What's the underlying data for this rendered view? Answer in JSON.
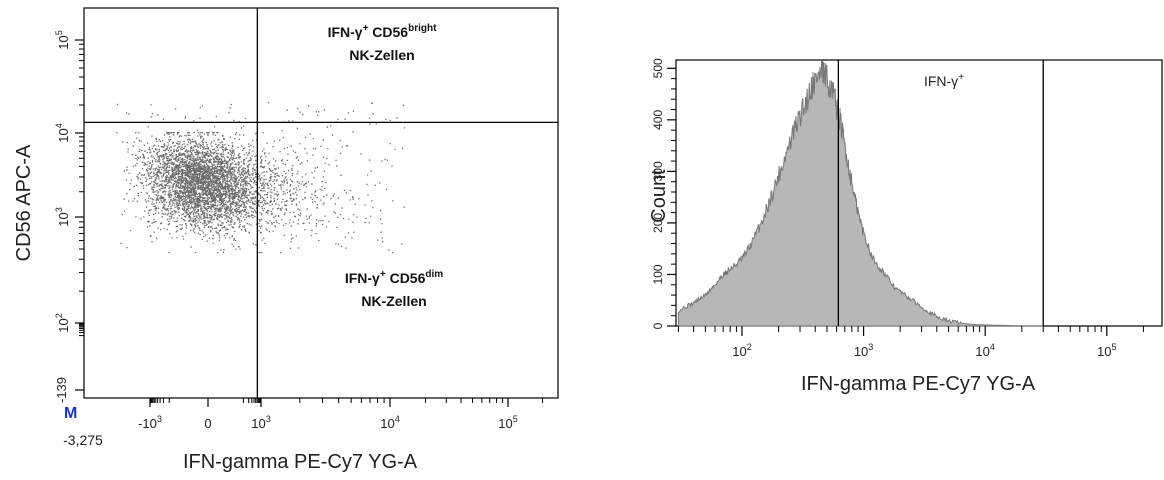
{
  "chart_data": [
    {
      "type": "scatter",
      "xlabel": "IFN-gamma PE-Cy7 YG-A",
      "ylabel": "CD56 APC-A",
      "x_ticks": [
        {
          "label": "-10",
          "sup": "3",
          "value": -1000
        },
        {
          "label": "0",
          "sup": "",
          "value": 0
        },
        {
          "label": "10",
          "sup": "3",
          "value": 1000
        },
        {
          "label": "10",
          "sup": "4",
          "value": 10000
        },
        {
          "label": "10",
          "sup": "5",
          "value": 100000
        }
      ],
      "y_ticks": [
        {
          "label": "-139",
          "sup": "",
          "value": -139
        },
        {
          "label": "10",
          "sup": "2",
          "value": 100
        },
        {
          "label": "10",
          "sup": "3",
          "value": 1000
        },
        {
          "label": "10",
          "sup": "4",
          "value": 10000
        },
        {
          "label": "10",
          "sup": "5",
          "value": 100000
        }
      ],
      "x_min_label": "-3,275",
      "marker_label": "M",
      "gate_x": 620,
      "gate_y": 13000,
      "quadrant_labels": [
        {
          "id": "upper-right",
          "line1": "IFN-γ",
          "sup1": "+",
          "line1b": " CD56",
          "sup2": "bright",
          "line2": "NK-Zellen"
        },
        {
          "id": "lower-right",
          "line1": "IFN-γ",
          "sup1": "+",
          "line1b": " CD56",
          "sup2": "dim",
          "line2": "NK-Zellen"
        }
      ],
      "point_cloud": {
        "center_x": 60,
        "center_y": 3000,
        "spread_note": "dense cluster around x≈0–300, y≈1000–6000"
      },
      "color": "#6b6b6b"
    },
    {
      "type": "area",
      "xlabel": "IFN-gamma PE-Cy7 YG-A",
      "ylabel": "Count",
      "x_ticks": [
        {
          "label": "10",
          "sup": "2",
          "value": 100
        },
        {
          "label": "10",
          "sup": "3",
          "value": 1000
        },
        {
          "label": "10",
          "sup": "4",
          "value": 10000
        },
        {
          "label": "10",
          "sup": "5",
          "value": 100000
        }
      ],
      "y_ticks": [
        0,
        100,
        200,
        300,
        400,
        500
      ],
      "ylim": [
        0,
        520
      ],
      "gate_label": "IFN-γ",
      "gate_label_sup": "+",
      "gate_start": 620,
      "gate_end": 30000,
      "series": [
        {
          "x": [
            30,
            40,
            50,
            60,
            70,
            85,
            100,
            120,
            150,
            180,
            220,
            270,
            330,
            380,
            420,
            470,
            520,
            580,
            640,
            700,
            780,
            880,
            1000,
            1200,
            1500,
            1800,
            2200,
            2700,
            3300,
            4000,
            5000,
            6500,
            8000,
            10000,
            15000,
            20000,
            30000
          ],
          "values": [
            30,
            45,
            60,
            80,
            100,
            115,
            130,
            160,
            210,
            260,
            320,
            380,
            430,
            470,
            485,
            490,
            470,
            440,
            400,
            350,
            290,
            230,
            180,
            130,
            100,
            75,
            60,
            45,
            30,
            18,
            10,
            5,
            3,
            2,
            1,
            0,
            0
          ]
        }
      ],
      "fill": "#b7b7b7",
      "stroke": "#777777"
    }
  ]
}
